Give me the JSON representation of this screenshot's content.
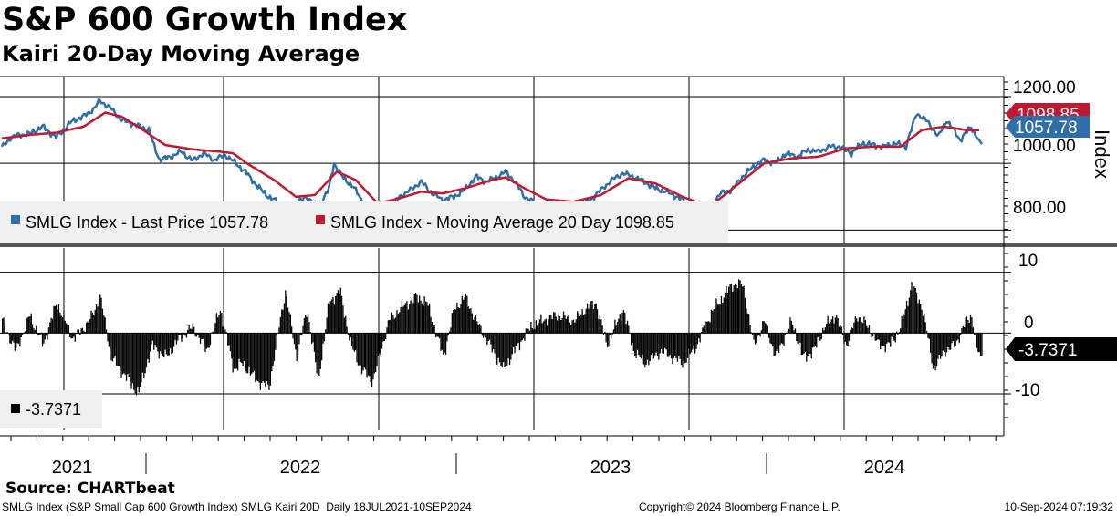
{
  "header": {
    "title": "S&P 600 Growth Index",
    "subtitle": "Kairi 20-Day Moving Average"
  },
  "colors": {
    "price": "#2f6ea8",
    "moving_average": "#c01a30",
    "histogram": "#000000",
    "grid": "#000000"
  },
  "chart_data": [
    {
      "type": "line",
      "title": "S&P 600 Growth Index",
      "ylabel": "Index",
      "ylim": [
        760,
        1260
      ],
      "yticks": [
        "1200.00",
        "1000.00",
        "800.00"
      ],
      "x_range": [
        "2021-07-18",
        "2024-09-10"
      ],
      "xtick_labels": [
        "2021",
        "2022",
        "2023",
        "2024"
      ],
      "legend": [
        "SMLG Index - Last Price 1057.78",
        "SMLG Index - Moving Average 20 Day 1098.85"
      ],
      "legend_placement": "bottom-left",
      "series": [
        {
          "name": "SMLG Index - Last Price",
          "last_label": "1057.78",
          "points": [
            [
              0,
              1047
            ],
            [
              0.3,
              1075
            ],
            [
              0.6,
              1085
            ],
            [
              1,
              1088
            ],
            [
              1.5,
              1110
            ],
            [
              2,
              1078
            ],
            [
              2.6,
              1128
            ],
            [
              3,
              1140
            ],
            [
              3.4,
              1165
            ],
            [
              3.6,
              1188
            ],
            [
              4,
              1165
            ],
            [
              4.4,
              1130
            ],
            [
              5,
              1112
            ],
            [
              5.4,
              1100
            ],
            [
              5.6,
              1050
            ],
            [
              5.8,
              1010
            ],
            [
              6.2,
              1020
            ],
            [
              6.6,
              1035
            ],
            [
              7,
              1008
            ],
            [
              7.4,
              1030
            ],
            [
              7.8,
              1010
            ],
            [
              8.2,
              1025
            ],
            [
              8.6,
              1000
            ],
            [
              9,
              970
            ],
            [
              9.4,
              930
            ],
            [
              9.8,
              900
            ],
            [
              10.2,
              880
            ],
            [
              10.5,
              840
            ],
            [
              10.8,
              880
            ],
            [
              11.2,
              900
            ],
            [
              11.6,
              870
            ],
            [
              12,
              920
            ],
            [
              12.2,
              1000
            ],
            [
              12.5,
              960
            ],
            [
              12.9,
              930
            ],
            [
              13.3,
              880
            ],
            [
              13.6,
              840
            ],
            [
              13.9,
              830
            ],
            [
              14.3,
              870
            ],
            [
              14.6,
              900
            ],
            [
              15,
              920
            ],
            [
              15.4,
              945
            ],
            [
              15.8,
              910
            ],
            [
              16.2,
              890
            ],
            [
              16.6,
              900
            ],
            [
              17,
              920
            ],
            [
              17.4,
              960
            ],
            [
              17.8,
              945
            ],
            [
              18.2,
              960
            ],
            [
              18.5,
              975
            ],
            [
              18.8,
              950
            ],
            [
              19.2,
              900
            ],
            [
              19.6,
              880
            ],
            [
              20,
              880
            ],
            [
              20.4,
              870
            ],
            [
              20.8,
              865
            ],
            [
              21.2,
              870
            ],
            [
              21.6,
              890
            ],
            [
              22,
              920
            ],
            [
              22.4,
              950
            ],
            [
              22.8,
              970
            ],
            [
              23.2,
              960
            ],
            [
              23.6,
              945
            ],
            [
              24,
              925
            ],
            [
              24.4,
              915
            ],
            [
              24.8,
              900
            ],
            [
              25.2,
              880
            ],
            [
              25.6,
              860
            ],
            [
              26,
              870
            ],
            [
              26.4,
              910
            ],
            [
              26.8,
              920
            ],
            [
              27.2,
              960
            ],
            [
              27.6,
              990
            ],
            [
              28,
              1010
            ],
            [
              28.4,
              1000
            ],
            [
              28.8,
              1030
            ],
            [
              29.2,
              1020
            ],
            [
              29.6,
              1040
            ],
            [
              30,
              1035
            ],
            [
              30.4,
              1050
            ],
            [
              30.8,
              1050
            ],
            [
              31.2,
              1030
            ],
            [
              31.6,
              1060
            ],
            [
              32,
              1055
            ],
            [
              32.4,
              1050
            ],
            [
              32.8,
              1060
            ],
            [
              33.2,
              1050
            ],
            [
              33.6,
              1150
            ],
            [
              34,
              1125
            ],
            [
              34.4,
              1080
            ],
            [
              34.7,
              1130
            ],
            [
              35.2,
              1070
            ],
            [
              35.6,
              1110
            ],
            [
              35.8,
              1080
            ],
            [
              36,
              1057.78
            ]
          ]
        },
        {
          "name": "SMLG Index - Moving Average 20 Day",
          "last_label": "1098.85",
          "points": [
            [
              0,
              1075
            ],
            [
              1,
              1085
            ],
            [
              2,
              1092
            ],
            [
              3,
              1110
            ],
            [
              3.8,
              1152
            ],
            [
              4.4,
              1140
            ],
            [
              5,
              1110
            ],
            [
              6,
              1055
            ],
            [
              7,
              1042
            ],
            [
              8,
              1035
            ],
            [
              8.5,
              1030
            ],
            [
              9,
              1000
            ],
            [
              10,
              950
            ],
            [
              10.8,
              900
            ],
            [
              11.5,
              905
            ],
            [
              12.3,
              975
            ],
            [
              13,
              950
            ],
            [
              13.8,
              880
            ],
            [
              14.6,
              895
            ],
            [
              15.4,
              915
            ],
            [
              16.2,
              910
            ],
            [
              17,
              925
            ],
            [
              18,
              950
            ],
            [
              18.5,
              958
            ],
            [
              19.2,
              925
            ],
            [
              20,
              892
            ],
            [
              21,
              885
            ],
            [
              22,
              905
            ],
            [
              23,
              955
            ],
            [
              24,
              940
            ],
            [
              25,
              900
            ],
            [
              26,
              870
            ],
            [
              27,
              935
            ],
            [
              28,
              1000
            ],
            [
              29,
              1015
            ],
            [
              30,
              1020
            ],
            [
              31,
              1045
            ],
            [
              32,
              1050
            ],
            [
              33,
              1050
            ],
            [
              33.8,
              1100
            ],
            [
              34.6,
              1110
            ],
            [
              35.4,
              1100
            ],
            [
              36,
              1098.85
            ]
          ]
        }
      ]
    },
    {
      "type": "bar",
      "title": "Kairi 20-Day Moving Average",
      "ylim": [
        -16,
        14
      ],
      "yticks": [
        "10",
        "0",
        "-10"
      ],
      "legend": [
        "-3.7371"
      ],
      "last_label": "-3.7371",
      "last_value": -3.7371,
      "waves": [
        [
          0,
          2
        ],
        [
          0.5,
          -3
        ],
        [
          1,
          3
        ],
        [
          1.5,
          -2
        ],
        [
          2,
          5
        ],
        [
          2.6,
          -1
        ],
        [
          3.2,
          2
        ],
        [
          3.6,
          6
        ],
        [
          4,
          -4
        ],
        [
          4.5,
          -7
        ],
        [
          5,
          -10
        ],
        [
          5.5,
          -2
        ],
        [
          6,
          -4
        ],
        [
          6.5,
          -1
        ],
        [
          7,
          1
        ],
        [
          7.5,
          -3
        ],
        [
          8,
          4
        ],
        [
          8.5,
          -6
        ],
        [
          8.8,
          -5
        ],
        [
          9.4,
          -8
        ],
        [
          9.8,
          -9
        ],
        [
          10.2,
          2
        ],
        [
          10.4,
          7
        ],
        [
          10.8,
          -4
        ],
        [
          11.2,
          4
        ],
        [
          11.6,
          -8
        ],
        [
          12,
          5
        ],
        [
          12.4,
          7
        ],
        [
          12.8,
          -2
        ],
        [
          13.2,
          -6
        ],
        [
          13.6,
          -8
        ],
        [
          14.2,
          2
        ],
        [
          14.6,
          4
        ],
        [
          15.2,
          6
        ],
        [
          15.6,
          5
        ],
        [
          16.2,
          -4
        ],
        [
          16.6,
          4
        ],
        [
          17,
          6
        ],
        [
          17.4,
          2
        ],
        [
          17.9,
          -2
        ],
        [
          18.4,
          -6
        ],
        [
          18.8,
          -3
        ],
        [
          19.4,
          1
        ],
        [
          19.8,
          2
        ],
        [
          20.4,
          3
        ],
        [
          21,
          2
        ],
        [
          21.4,
          4
        ],
        [
          21.8,
          5
        ],
        [
          22.2,
          -2
        ],
        [
          22.8,
          4
        ],
        [
          23.2,
          -3
        ],
        [
          23.6,
          -5
        ],
        [
          24.2,
          -3
        ],
        [
          25,
          -5
        ],
        [
          25.5,
          -2
        ],
        [
          26,
          3
        ],
        [
          26.3,
          5
        ],
        [
          26.8,
          8
        ],
        [
          27.2,
          8
        ],
        [
          27.6,
          -2
        ],
        [
          28,
          2
        ],
        [
          28.4,
          -4
        ],
        [
          29,
          2
        ],
        [
          29.4,
          -4
        ],
        [
          29.8,
          -3
        ],
        [
          30.2,
          1
        ],
        [
          30.6,
          3
        ],
        [
          31,
          -2
        ],
        [
          31.4,
          3
        ],
        [
          31.8,
          1
        ],
        [
          32.2,
          -2
        ],
        [
          32.6,
          -2
        ],
        [
          33,
          1
        ],
        [
          33.4,
          8
        ],
        [
          33.8,
          4
        ],
        [
          34.2,
          -6
        ],
        [
          34.6,
          -3
        ],
        [
          35,
          -2
        ],
        [
          35.4,
          2
        ],
        [
          35.6,
          3
        ],
        [
          35.8,
          -3
        ],
        [
          36,
          -3.7371
        ]
      ]
    }
  ]
}
